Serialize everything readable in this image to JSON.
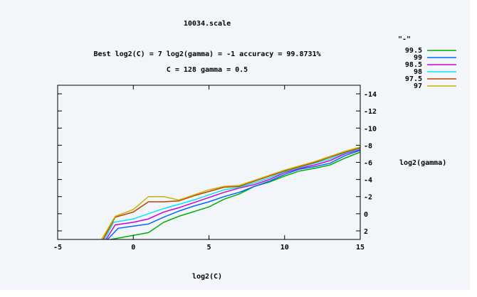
{
  "chart_data": {
    "type": "line",
    "title": "10034.scale",
    "subtitle_lines": [
      "Best log2(C) = 7  log2(gamma) = -1  accuracy = 99.8731%",
      "C = 128  gamma = 0.5"
    ],
    "xlabel": "log2(C)",
    "ylabel": "log2(gamma)",
    "xlim": [
      -5,
      15
    ],
    "ylim": [
      3,
      -15
    ],
    "x_ticks": [
      "-5",
      "0",
      "5",
      "10",
      "15"
    ],
    "y_ticks": [
      {
        "v": -14,
        "label": "-14"
      },
      {
        "v": -12,
        "label": "-12"
      },
      {
        "v": -10,
        "label": "-10"
      },
      {
        "v": -8,
        "label": "-8"
      },
      {
        "v": -6,
        "label": "-6"
      },
      {
        "v": -4,
        "label": "-4"
      },
      {
        "v": -2,
        "label": "-2"
      },
      {
        "v": 0,
        "label": "0"
      },
      {
        "v": 2,
        "label": "2"
      }
    ],
    "legend_title": "\"-\"",
    "legend_placement": "top-right",
    "grid": false,
    "series": [
      {
        "name": "99.5",
        "color": "#00b000",
        "points": [
          [
            -1.5,
            3
          ],
          [
            1,
            2.2
          ],
          [
            2,
            1
          ],
          [
            3,
            0.3
          ],
          [
            5,
            -0.8
          ],
          [
            6,
            -1.7
          ],
          [
            7,
            -2.3
          ],
          [
            8,
            -3.2
          ],
          [
            9,
            -3.7
          ],
          [
            10,
            -4.4
          ],
          [
            11,
            -5
          ],
          [
            12,
            -5.3
          ],
          [
            13,
            -5.7
          ],
          [
            14,
            -6.5
          ],
          [
            15,
            -7.2
          ]
        ]
      },
      {
        "name": "99",
        "color": "#0068ff",
        "points": [
          [
            -1.7,
            3
          ],
          [
            -1,
            1.7
          ],
          [
            1,
            1.2
          ],
          [
            2,
            0.4
          ],
          [
            3,
            -0.3
          ],
          [
            4,
            -0.9
          ],
          [
            5,
            -1.4
          ],
          [
            6,
            -2
          ],
          [
            7,
            -2.5
          ],
          [
            8,
            -3.2
          ],
          [
            9,
            -3.8
          ],
          [
            10,
            -4.6
          ],
          [
            11,
            -5.2
          ],
          [
            12,
            -5.5
          ],
          [
            13,
            -5.9
          ],
          [
            14,
            -6.8
          ],
          [
            15,
            -7.4
          ]
        ]
      },
      {
        "name": "98.5",
        "color": "#d000d0",
        "points": [
          [
            -1.8,
            3
          ],
          [
            -1.2,
            1.3
          ],
          [
            0,
            1
          ],
          [
            1,
            0.6
          ],
          [
            2,
            -0.2
          ],
          [
            3,
            -0.7
          ],
          [
            4,
            -1.3
          ],
          [
            5,
            -1.9
          ],
          [
            6,
            -2.5
          ],
          [
            7,
            -3
          ],
          [
            8,
            -3.4
          ],
          [
            9,
            -4
          ],
          [
            10,
            -4.8
          ],
          [
            11,
            -5.3
          ],
          [
            12,
            -5.7
          ],
          [
            13,
            -6.2
          ],
          [
            14,
            -7
          ],
          [
            15,
            -7.5
          ]
        ]
      },
      {
        "name": "98",
        "color": "#00e8f0",
        "points": [
          [
            -1.9,
            3
          ],
          [
            -1.3,
            1
          ],
          [
            0,
            0.6
          ],
          [
            1,
            0
          ],
          [
            2,
            -0.6
          ],
          [
            3,
            -1.1
          ],
          [
            4,
            -1.6
          ],
          [
            5,
            -2.2
          ],
          [
            6,
            -2.8
          ],
          [
            7,
            -3.1
          ],
          [
            8,
            -3.6
          ],
          [
            9,
            -4.2
          ],
          [
            10,
            -4.9
          ],
          [
            11,
            -5.4
          ],
          [
            12,
            -5.9
          ],
          [
            13,
            -6.4
          ],
          [
            14,
            -7.1
          ],
          [
            15,
            -7.6
          ]
        ]
      },
      {
        "name": "97.5",
        "color": "#c04000",
        "points": [
          [
            -2,
            3
          ],
          [
            -1.2,
            0.4
          ],
          [
            0,
            -0.2
          ],
          [
            1,
            -1.4
          ],
          [
            2,
            -1.4
          ],
          [
            3,
            -1.5
          ],
          [
            4,
            -2.1
          ],
          [
            5,
            -2.6
          ],
          [
            6,
            -3.1
          ],
          [
            7,
            -3.2
          ],
          [
            8,
            -3.8
          ],
          [
            9,
            -4.4
          ],
          [
            10,
            -5
          ],
          [
            11,
            -5.5
          ],
          [
            12,
            -6
          ],
          [
            13,
            -6.6
          ],
          [
            14,
            -7.2
          ],
          [
            15,
            -7.7
          ]
        ]
      },
      {
        "name": "97",
        "color": "#c8b400",
        "points": [
          [
            -2.1,
            3
          ],
          [
            -1.2,
            0.3
          ],
          [
            0,
            -0.5
          ],
          [
            1,
            -2
          ],
          [
            2,
            -2
          ],
          [
            3,
            -1.6
          ],
          [
            4,
            -2.2
          ],
          [
            5,
            -2.8
          ],
          [
            6,
            -3.2
          ],
          [
            7,
            -3.3
          ],
          [
            8,
            -3.9
          ],
          [
            9,
            -4.5
          ],
          [
            10,
            -5.1
          ],
          [
            11,
            -5.6
          ],
          [
            12,
            -6.1
          ],
          [
            13,
            -6.7
          ],
          [
            14,
            -7.3
          ],
          [
            15,
            -7.8
          ]
        ]
      }
    ]
  }
}
